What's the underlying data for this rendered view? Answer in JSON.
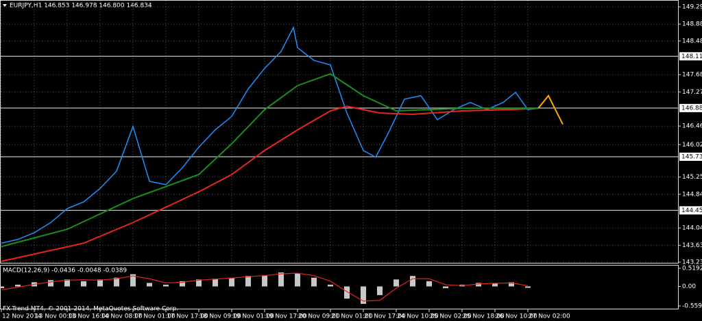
{
  "header": {
    "title": "EURJPY,H1  146.853 146.978 146.800 146.834"
  },
  "footer": "FX-Trend MT4, © 2001-2014, MetaQuotes Software Corp.",
  "chart_data": [
    {
      "type": "line",
      "xlim": [
        0,
        329
      ],
      "ylim": [
        143.23,
        149.29
      ],
      "grid": true,
      "yticks": [
        {
          "value": 149.29,
          "label": "149.290"
        },
        {
          "value": 148.88,
          "label": "148.880"
        },
        {
          "value": 148.48,
          "label": "148.480"
        },
        {
          "value": 147.68,
          "label": "147.680"
        },
        {
          "value": 147.27,
          "label": "147.270"
        },
        {
          "value": 146.46,
          "label": "146.460"
        },
        {
          "value": 146.02,
          "label": "146.020"
        },
        {
          "value": 145.25,
          "label": "145.250"
        },
        {
          "value": 144.84,
          "label": "144.840"
        },
        {
          "value": 144.04,
          "label": "144.040"
        },
        {
          "value": 143.63,
          "label": "143.630"
        },
        {
          "value": 143.23,
          "label": "143.230"
        }
      ],
      "levels": [
        148.116,
        146.888,
        145.732,
        144.459
      ],
      "xticks": [
        {
          "value": 0,
          "label": "12 Nov 2014"
        },
        {
          "value": 16,
          "label": "13 Nov 00:00"
        },
        {
          "value": 32,
          "label": "13 Nov 16:00"
        },
        {
          "value": 48,
          "label": "14 Nov 08:00"
        },
        {
          "value": 64,
          "label": "17 Nov 01:00"
        },
        {
          "value": 80,
          "label": "17 Nov 17:00"
        },
        {
          "value": 96,
          "label": "18 Nov 09:00"
        },
        {
          "value": 112,
          "label": "19 Nov 01:00"
        },
        {
          "value": 128,
          "label": "19 Nov 17:00"
        },
        {
          "value": 144,
          "label": "20 Nov 09:00"
        },
        {
          "value": 160,
          "label": "21 Nov 01:00"
        },
        {
          "value": 176,
          "label": "21 Nov 17:00"
        },
        {
          "value": 192,
          "label": "24 Nov 10:00"
        },
        {
          "value": 208,
          "label": "25 Nov 02:00"
        },
        {
          "value": 224,
          "label": "25 Nov 18:00"
        },
        {
          "value": 240,
          "label": "26 Nov 10:00"
        },
        {
          "value": 256,
          "label": "27 Nov 02:00"
        }
      ],
      "series": [
        {
          "color": "#1e90ff",
          "x": [
            0,
            8,
            16,
            24,
            32,
            40,
            48,
            56,
            64,
            72,
            80,
            88,
            96,
            104,
            112,
            120,
            128,
            136,
            142,
            144,
            152,
            160,
            168,
            176,
            182,
            188,
            196,
            204,
            212,
            220,
            228,
            236,
            244,
            250,
            256,
            261
          ],
          "values": [
            143.68,
            143.77,
            143.93,
            144.17,
            144.5,
            144.66,
            144.98,
            145.39,
            146.45,
            145.15,
            145.07,
            145.47,
            145.96,
            146.37,
            146.69,
            147.34,
            147.83,
            148.23,
            148.8,
            148.32,
            148.02,
            147.91,
            146.77,
            145.88,
            145.72,
            146.28,
            147.1,
            147.18,
            146.61,
            146.85,
            147.02,
            146.85,
            147.02,
            147.26,
            146.85,
            146.88
          ]
        },
        {
          "color": "#e8261c",
          "x": [
            0,
            40,
            64,
            96,
            112,
            128,
            144,
            160,
            168,
            184,
            200,
            224,
            248,
            261
          ],
          "values": [
            143.25,
            143.68,
            144.17,
            144.9,
            145.31,
            145.88,
            146.37,
            146.82,
            146.93,
            146.77,
            146.74,
            146.82,
            146.85,
            146.88
          ]
        },
        {
          "color": "#1a8f1a",
          "x": [
            0,
            32,
            64,
            96,
            112,
            128,
            144,
            160,
            176,
            192,
            224,
            261
          ],
          "values": [
            143.6,
            144.01,
            144.74,
            145.31,
            146.04,
            146.85,
            147.42,
            147.7,
            147.18,
            146.82,
            146.88,
            146.88
          ]
        },
        {
          "color": "#ffa500",
          "x": [
            261,
            266,
            273
          ],
          "values": [
            146.88,
            147.18,
            146.5
          ]
        }
      ]
    },
    {
      "type": "macd",
      "title": "MACD(12,26,9) -0.0436 -0.0048 -0.0389",
      "xlim": [
        0,
        329
      ],
      "ylim": [
        -0.5594,
        0.5192
      ],
      "yticks": [
        {
          "value": 0.5192,
          "label": "0.5192"
        },
        {
          "value": 0,
          "label": "0.00"
        },
        {
          "value": -0.5594,
          "label": "-0.5594"
        }
      ],
      "x": [
        0,
        8,
        16,
        24,
        32,
        40,
        48,
        56,
        64,
        72,
        80,
        88,
        96,
        104,
        112,
        120,
        128,
        136,
        144,
        152,
        160,
        168,
        176,
        184,
        192,
        200,
        208,
        216,
        224,
        232,
        240,
        248,
        256
      ],
      "series": [
        {
          "color": "#c8c8c8",
          "values": [
            -0.05,
            0.05,
            0.12,
            0.18,
            0.2,
            0.15,
            0.2,
            0.25,
            0.35,
            0.1,
            0.05,
            0.15,
            0.2,
            0.22,
            0.25,
            0.3,
            0.32,
            0.4,
            0.38,
            0.25,
            0.05,
            -0.35,
            -0.5,
            -0.25,
            0.2,
            0.3,
            0.15,
            -0.05,
            0.05,
            0.1,
            0.08,
            0.12,
            -0.04
          ]
        },
        {
          "color": "#e8261c",
          "values": [
            -0.1,
            -0.02,
            0.06,
            0.13,
            0.18,
            0.19,
            0.18,
            0.22,
            0.3,
            0.22,
            0.1,
            0.12,
            0.18,
            0.21,
            0.24,
            0.28,
            0.31,
            0.36,
            0.38,
            0.31,
            0.15,
            -0.15,
            -0.42,
            -0.4,
            -0.05,
            0.22,
            0.22,
            0.05,
            0.02,
            0.07,
            0.09,
            0.1,
            0.02
          ]
        }
      ]
    }
  ]
}
